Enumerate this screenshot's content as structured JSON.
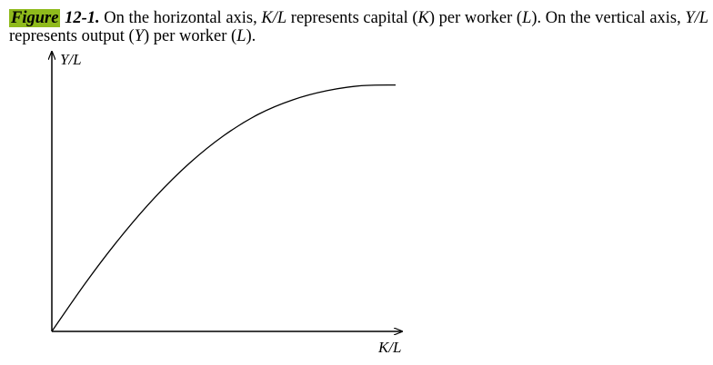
{
  "caption": {
    "label": "Figure",
    "number": "12-1.",
    "text_1": " On the horizontal axis, ",
    "kl": "K/L",
    "text_2": " represents capital (",
    "k": "K",
    "text_3": ") per worker (",
    "l1": "L",
    "text_4": ").  On the vertical axis, ",
    "yl": "Y/L",
    "text_5": " represents output (",
    "y": "Y",
    "text_6": ") per worker (",
    "l2": "L",
    "text_7": ").",
    "highlight_color": "#8fba1c"
  },
  "chart_data": {
    "type": "line",
    "title": "",
    "xlabel": "K/L",
    "ylabel": "Y/L",
    "xlim": [
      0,
      10
    ],
    "ylim": [
      0,
      10
    ],
    "grid": false,
    "tick_labels": false,
    "series": [
      {
        "x": [
          0,
          1,
          2,
          3,
          4,
          5,
          6,
          7,
          8,
          9,
          10
        ],
        "values": [
          0,
          1.98,
          3.78,
          5.37,
          6.73,
          7.84,
          8.69,
          9.27,
          9.64,
          9.84,
          9.87
        ]
      }
    ]
  }
}
